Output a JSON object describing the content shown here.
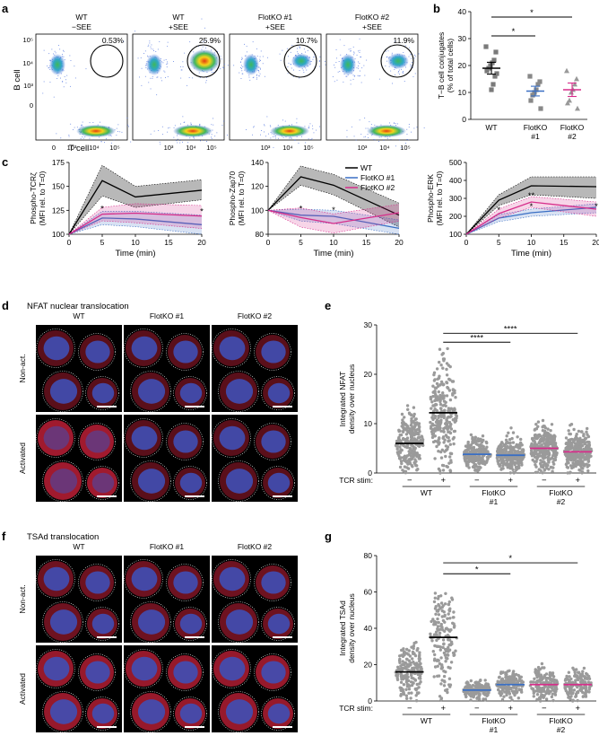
{
  "panels": {
    "a": {
      "letter": "a",
      "y_label": "B cell",
      "x_label": "T cell",
      "y_ticks": [
        "10⁵",
        "10⁴",
        "10³",
        "0"
      ],
      "x_ticks": [
        "0",
        "10³",
        "10⁴",
        "10⁵"
      ],
      "plots": [
        {
          "title1": "WT",
          "title2": "−SEE",
          "pct": "0.53%",
          "density": 0.15
        },
        {
          "title1": "WT",
          "title2": "+SEE",
          "pct": "25.9%",
          "density": 1.0
        },
        {
          "title1": "FlotKO #1",
          "title2": "+SEE",
          "pct": "10.7%",
          "density": 0.55
        },
        {
          "title1": "FlotKO #2",
          "title2": "+SEE",
          "pct": "11.9%",
          "density": 0.6
        }
      ]
    },
    "b": {
      "letter": "b"
    },
    "c": {
      "letter": "c"
    },
    "d": {
      "letter": "d",
      "title": "NFAT nuclear translocation",
      "cols": [
        "WT",
        "FlotKO #1",
        "FlotKO #2"
      ],
      "rows": [
        "Non-act.",
        "Activated"
      ]
    },
    "e": {
      "letter": "e",
      "tcr_label": "TCR stim:"
    },
    "f": {
      "letter": "f",
      "title": "TSAd translocation",
      "cols": [
        "WT",
        "FlotKO #1",
        "FlotKO #2"
      ],
      "rows": [
        "Non-act.",
        "Activated"
      ]
    },
    "g": {
      "letter": "g",
      "tcr_label": "TCR stim:"
    }
  },
  "colors": {
    "wt": "#000000",
    "ko1": "#3a6fc4",
    "ko2": "#d62d8a",
    "gray": "#9a9a9a",
    "nucleus": "#3f4fb5",
    "cytoplasm": "#c8213a"
  },
  "chart_data": [
    {
      "id": "b",
      "type": "scatter",
      "ylabel": "T−B cell conjugates (% of total cells)",
      "ylim": [
        0,
        40
      ],
      "yticks": [
        0,
        10,
        20,
        30,
        40
      ],
      "categories": [
        "WT",
        "FlotKO #1",
        "FlotKO #2"
      ],
      "category_lines": [
        [
          "WT"
        ],
        [
          "FlotKO",
          "#1"
        ],
        [
          "FlotKO",
          "#2"
        ]
      ],
      "series": [
        {
          "name": "WT",
          "color": "#000000",
          "marker": "square",
          "mean": 19,
          "sem": 2.2,
          "values": [
            27,
            25,
            22,
            21,
            20,
            19,
            18,
            17,
            16,
            13,
            11
          ]
        },
        {
          "name": "FlotKO #1",
          "color": "#3a6fc4",
          "marker": "square",
          "mean": 10.5,
          "sem": 1.8,
          "values": [
            16,
            14,
            13,
            11,
            10,
            9,
            7,
            4
          ]
        },
        {
          "name": "FlotKO #2",
          "color": "#d62d8a",
          "marker": "triangle",
          "mean": 11,
          "sem": 2.5,
          "values": [
            18,
            15,
            13,
            11,
            10,
            7,
            6,
            4
          ]
        }
      ],
      "significance": [
        {
          "from": 0,
          "to": 1,
          "label": "*",
          "level": 31
        },
        {
          "from": 0,
          "to": 2,
          "label": "*",
          "level": 38
        }
      ]
    },
    {
      "id": "c1",
      "type": "line",
      "ylabel": "Phospho-TCRζ (MFI rel. to T=0)",
      "xlabel": "Time (min)",
      "x": [
        0,
        5,
        10,
        20
      ],
      "xlim": [
        0,
        20
      ],
      "ylim": [
        100,
        175
      ],
      "yticks": [
        100,
        125,
        150,
        175
      ],
      "series": [
        {
          "name": "WT",
          "color": "#000000",
          "values": [
            100,
            156,
            139,
            146
          ],
          "lower": [
            100,
            140,
            128,
            136
          ],
          "upper": [
            100,
            172,
            150,
            157
          ]
        },
        {
          "name": "FlotKO #1",
          "color": "#3a6fc4",
          "values": [
            100,
            117,
            116,
            110
          ],
          "lower": [
            100,
            110,
            108,
            100
          ],
          "upper": [
            100,
            124,
            124,
            120
          ]
        },
        {
          "name": "FlotKO #2",
          "color": "#d62d8a",
          "values": [
            100,
            121,
            122,
            119
          ],
          "lower": [
            100,
            114,
            112,
            106
          ],
          "upper": [
            100,
            128,
            132,
            130
          ]
        }
      ],
      "annotations": [
        {
          "x": 5,
          "y": 124,
          "text": "*"
        },
        {
          "x": 20,
          "y": 121,
          "text": "*"
        }
      ]
    },
    {
      "id": "c2",
      "type": "line",
      "ylabel": "Phospho-Zap70 (MFI rel. to T=0)",
      "xlabel": "Time (min)",
      "x": [
        0,
        5,
        10,
        20
      ],
      "xlim": [
        0,
        20
      ],
      "ylim": [
        80,
        140
      ],
      "yticks": [
        80,
        100,
        120,
        140
      ],
      "series": [
        {
          "name": "WT",
          "color": "#000000",
          "values": [
            100,
            128,
            121,
            96
          ],
          "lower": [
            100,
            121,
            113,
            86
          ],
          "upper": [
            100,
            137,
            130,
            106
          ]
        },
        {
          "name": "FlotKO #1",
          "color": "#3a6fc4",
          "values": [
            100,
            96,
            95,
            85
          ],
          "lower": [
            100,
            91,
            89,
            79
          ],
          "upper": [
            100,
            101,
            100,
            92
          ]
        },
        {
          "name": "FlotKO #2",
          "color": "#d62d8a",
          "values": [
            100,
            94,
            89,
            98
          ],
          "lower": [
            100,
            86,
            81,
            91
          ],
          "upper": [
            100,
            102,
            97,
            105
          ]
        }
      ],
      "annotations": [
        {
          "x": 5,
          "y": 99,
          "text": "*"
        },
        {
          "x": 10,
          "y": 98,
          "text": "*"
        }
      ],
      "legend": {
        "position": "top-right",
        "entries": [
          "WT",
          "FlotKO #1",
          "FlotKO #2"
        ]
      }
    },
    {
      "id": "c3",
      "type": "line",
      "ylabel": "Phospho-ERK (MFI rel. to T=0)",
      "xlabel": "Time (min)",
      "x": [
        0,
        5,
        10,
        20
      ],
      "xlim": [
        0,
        20
      ],
      "ylim": [
        100,
        500
      ],
      "yticks": [
        100,
        200,
        300,
        400,
        500
      ],
      "series": [
        {
          "name": "WT",
          "color": "#000000",
          "values": [
            100,
            290,
            370,
            365
          ],
          "lower": [
            100,
            260,
            320,
            300
          ],
          "upper": [
            100,
            320,
            420,
            420
          ]
        },
        {
          "name": "FlotKO #1",
          "color": "#3a6fc4",
          "values": [
            100,
            190,
            220,
            250
          ],
          "lower": [
            100,
            170,
            200,
            220
          ],
          "upper": [
            100,
            210,
            240,
            270
          ]
        },
        {
          "name": "FlotKO #2",
          "color": "#d62d8a",
          "values": [
            100,
            215,
            280,
            240
          ],
          "lower": [
            100,
            190,
            250,
            200
          ],
          "upper": [
            100,
            240,
            310,
            280
          ]
        }
      ],
      "annotations": [
        {
          "x": 5,
          "y": 220,
          "text": "*"
        },
        {
          "x": 10,
          "y": 300,
          "text": "**"
        },
        {
          "x": 10,
          "y": 240,
          "text": "*"
        },
        {
          "x": 20,
          "y": 240,
          "text": "*"
        }
      ]
    },
    {
      "id": "e",
      "type": "scatter",
      "ylabel": "Integrated NFAT density over nucleus",
      "ylim": [
        0,
        30
      ],
      "yticks": [
        0,
        10,
        20,
        30
      ],
      "groups": [
        "WT",
        "FlotKO #1",
        "FlotKO #2"
      ],
      "group_lines": [
        [
          "WT"
        ],
        [
          "FlotKO",
          "#1"
        ],
        [
          "FlotKO",
          "#2"
        ]
      ],
      "columns": [
        {
          "group": "WT",
          "stim": "−",
          "median": 6,
          "max": 14,
          "color": "#000000",
          "count": 420
        },
        {
          "group": "WT",
          "stim": "+",
          "median": 12.2,
          "max": 26,
          "color": "#000000",
          "count": 800
        },
        {
          "group": "FlotKO #1",
          "stim": "−",
          "median": 3.8,
          "max": 7.8,
          "color": "#3a6fc4",
          "count": 200
        },
        {
          "group": "FlotKO #1",
          "stim": "+",
          "median": 3.6,
          "max": 12,
          "color": "#3a6fc4",
          "count": 380
        },
        {
          "group": "FlotKO #2",
          "stim": "−",
          "median": 5,
          "max": 12,
          "color": "#d62d8a",
          "count": 340
        },
        {
          "group": "FlotKO #2",
          "stim": "+",
          "median": 4.3,
          "max": 15,
          "color": "#d62d8a",
          "count": 460
        }
      ],
      "significance": [
        {
          "from": 1,
          "to": 3,
          "label": "****",
          "level": 26.5
        },
        {
          "from": 1,
          "to": 5,
          "label": "****",
          "level": 28.3
        }
      ]
    },
    {
      "id": "g",
      "type": "scatter",
      "ylabel": "Integrated TSAd density over nucleus",
      "ylim": [
        0,
        80
      ],
      "yticks": [
        0,
        20,
        40,
        60,
        80
      ],
      "groups": [
        "WT",
        "FlotKO #1",
        "FlotKO #2"
      ],
      "group_lines": [
        [
          "WT"
        ],
        [
          "FlotKO",
          "#1"
        ],
        [
          "FlotKO",
          "#2"
        ]
      ],
      "columns": [
        {
          "group": "WT",
          "stim": "−",
          "median": 16,
          "max": 37,
          "color": "#000000",
          "count": 190
        },
        {
          "group": "WT",
          "stim": "+",
          "median": 35,
          "max": 62,
          "color": "#000000",
          "count": 170
        },
        {
          "group": "FlotKO #1",
          "stim": "−",
          "median": 6,
          "max": 16,
          "color": "#3a6fc4",
          "count": 140
        },
        {
          "group": "FlotKO #1",
          "stim": "+",
          "median": 9,
          "max": 25,
          "color": "#3a6fc4",
          "count": 160
        },
        {
          "group": "FlotKO #2",
          "stim": "−",
          "median": 9,
          "max": 29,
          "color": "#d62d8a",
          "count": 170
        },
        {
          "group": "FlotKO #2",
          "stim": "+",
          "median": 9,
          "max": 23,
          "color": "#d62d8a",
          "count": 150
        }
      ],
      "significance": [
        {
          "from": 1,
          "to": 3,
          "label": "*",
          "level": 70
        },
        {
          "from": 1,
          "to": 5,
          "label": "*",
          "level": 76
        }
      ]
    }
  ]
}
